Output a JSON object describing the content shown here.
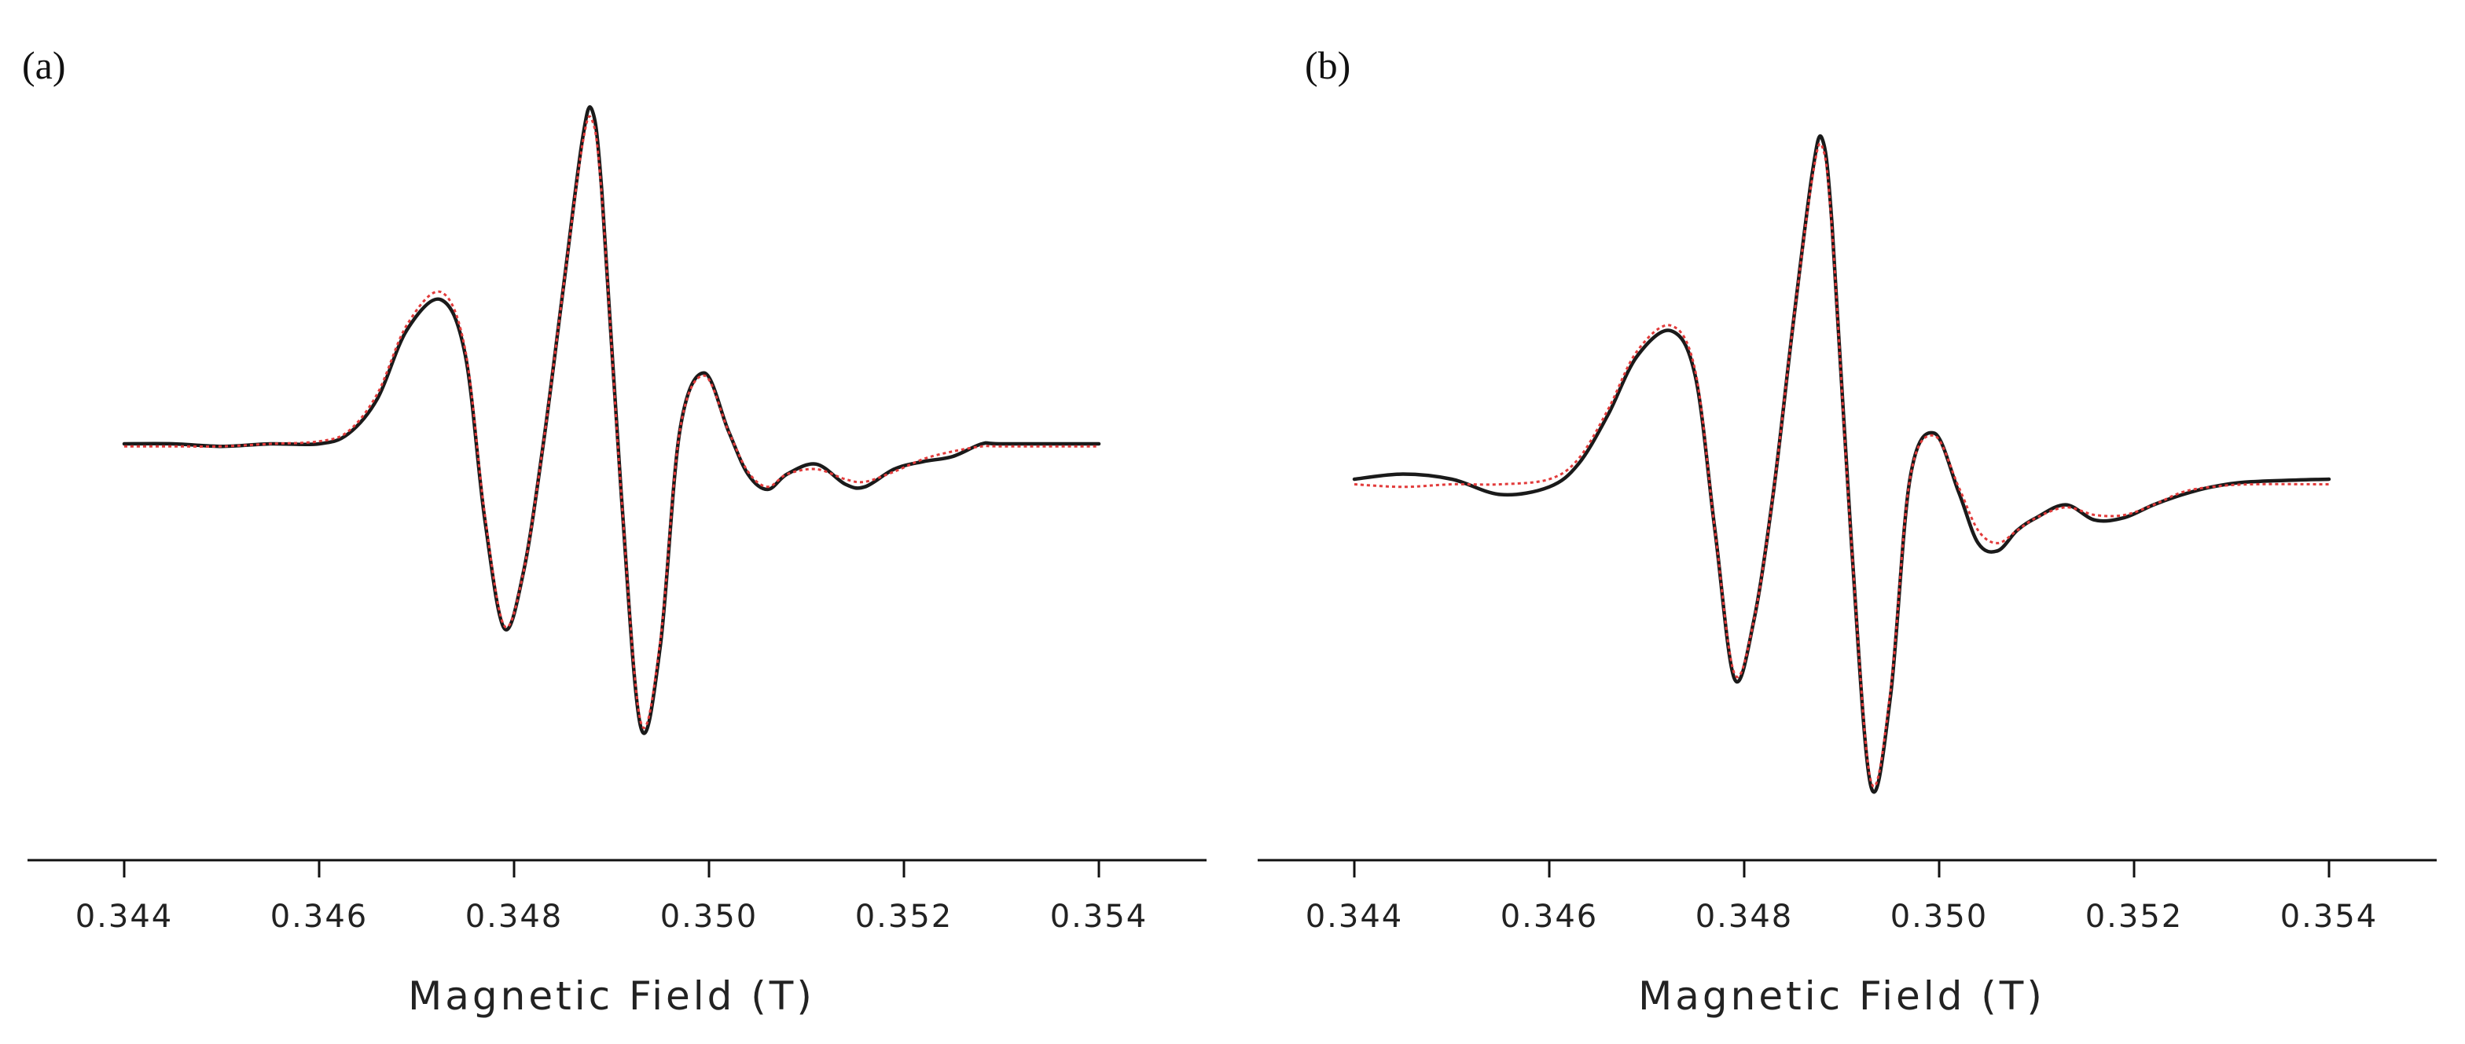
{
  "chart_data": [
    {
      "type": "line",
      "panel_label": "(a)",
      "xlabel": "Magnetic Field (T)",
      "ylabel": "",
      "xlim": [
        0.344,
        0.354
      ],
      "ylim": [
        -1.2,
        1.4
      ],
      "x_ticks": [
        "0.344",
        "0.346",
        "0.348",
        "0.350",
        "0.352",
        "0.354"
      ],
      "x_tick_values": [
        0.344,
        0.346,
        0.348,
        0.35,
        0.352,
        0.354
      ],
      "grid": false,
      "legend": "none",
      "series": [
        {
          "style": "solid",
          "color": "#1a1a1a",
          "x": [
            0.344,
            0.3445,
            0.345,
            0.3455,
            0.346,
            0.3463,
            0.3466,
            0.3469,
            0.34725,
            0.3475,
            0.3477,
            0.3479,
            0.3481,
            0.3483,
            0.3485,
            0.3487,
            0.3488,
            0.3489,
            0.3491,
            0.3493,
            0.3495,
            0.3497,
            0.34995,
            0.3502,
            0.3504,
            0.3506,
            0.3508,
            0.3511,
            0.3514,
            0.3516,
            0.3519,
            0.3522,
            0.3525,
            0.3528,
            0.353,
            0.354
          ],
          "y": [
            0.0,
            0.0,
            -0.01,
            0.0,
            0.0,
            0.04,
            0.18,
            0.45,
            0.57,
            0.35,
            -0.3,
            -0.73,
            -0.5,
            0.0,
            0.6,
            1.2,
            1.32,
            1.0,
            -0.2,
            -1.12,
            -0.8,
            0.05,
            0.28,
            0.05,
            -0.12,
            -0.18,
            -0.12,
            -0.08,
            -0.16,
            -0.17,
            -0.1,
            -0.07,
            -0.05,
            0.0,
            0.0,
            0.0
          ]
        },
        {
          "style": "dotted",
          "color": "#e23b3b",
          "x": [
            0.344,
            0.3445,
            0.345,
            0.3455,
            0.346,
            0.3463,
            0.3466,
            0.3469,
            0.34725,
            0.3475,
            0.3477,
            0.3479,
            0.3481,
            0.3483,
            0.3485,
            0.3487,
            0.3488,
            0.3489,
            0.3491,
            0.3493,
            0.3495,
            0.3497,
            0.34995,
            0.3502,
            0.3504,
            0.3506,
            0.3508,
            0.3511,
            0.3514,
            0.3516,
            0.3519,
            0.3522,
            0.3525,
            0.3528,
            0.353,
            0.354
          ],
          "y": [
            -0.01,
            -0.01,
            -0.01,
            0.0,
            0.01,
            0.05,
            0.2,
            0.47,
            0.6,
            0.37,
            -0.28,
            -0.72,
            -0.5,
            0.0,
            0.6,
            1.18,
            1.28,
            0.98,
            -0.2,
            -1.1,
            -0.78,
            0.05,
            0.27,
            0.05,
            -0.11,
            -0.17,
            -0.12,
            -0.1,
            -0.14,
            -0.15,
            -0.11,
            -0.06,
            -0.03,
            -0.01,
            -0.01,
            -0.01
          ]
        }
      ]
    },
    {
      "type": "line",
      "panel_label": "(b)",
      "xlabel": "Magnetic Field (T)",
      "ylabel": "",
      "xlim": [
        0.344,
        0.354
      ],
      "ylim": [
        -1.2,
        1.4
      ],
      "x_ticks": [
        "0.344",
        "0.346",
        "0.348",
        "0.350",
        "0.352",
        "0.354"
      ],
      "x_tick_values": [
        0.344,
        0.346,
        0.348,
        0.35,
        0.352,
        0.354
      ],
      "grid": false,
      "legend": "none",
      "series": [
        {
          "style": "solid",
          "color": "#1a1a1a",
          "x": [
            0.344,
            0.3445,
            0.345,
            0.3455,
            0.346,
            0.3463,
            0.3466,
            0.3469,
            0.34725,
            0.3475,
            0.3477,
            0.3479,
            0.3481,
            0.3483,
            0.3485,
            0.3487,
            0.3488,
            0.3489,
            0.3491,
            0.3493,
            0.3495,
            0.3497,
            0.34995,
            0.3502,
            0.3504,
            0.3506,
            0.3508,
            0.351,
            0.3513,
            0.3516,
            0.3519,
            0.3522,
            0.3525,
            0.3528,
            0.3532,
            0.354
          ],
          "y": [
            0.0,
            0.02,
            0.0,
            -0.06,
            -0.03,
            0.06,
            0.25,
            0.48,
            0.58,
            0.4,
            -0.2,
            -0.78,
            -0.55,
            -0.05,
            0.6,
            1.2,
            1.33,
            1.0,
            -0.25,
            -1.2,
            -0.85,
            0.0,
            0.18,
            -0.05,
            -0.25,
            -0.28,
            -0.2,
            -0.15,
            -0.1,
            -0.16,
            -0.15,
            -0.1,
            -0.06,
            -0.03,
            -0.01,
            0.0
          ]
        },
        {
          "style": "dotted",
          "color": "#e23b3b",
          "x": [
            0.344,
            0.3445,
            0.345,
            0.3455,
            0.346,
            0.3463,
            0.3466,
            0.3469,
            0.34725,
            0.3475,
            0.3477,
            0.3479,
            0.3481,
            0.3483,
            0.3485,
            0.3487,
            0.3488,
            0.3489,
            0.3491,
            0.3493,
            0.3495,
            0.3497,
            0.34995,
            0.3502,
            0.3504,
            0.3506,
            0.3508,
            0.351,
            0.3513,
            0.3516,
            0.3519,
            0.3522,
            0.3525,
            0.3528,
            0.3532,
            0.354
          ],
          "y": [
            -0.02,
            -0.03,
            -0.02,
            -0.02,
            0.0,
            0.08,
            0.27,
            0.5,
            0.6,
            0.42,
            -0.2,
            -0.76,
            -0.55,
            -0.05,
            0.6,
            1.18,
            1.3,
            0.98,
            -0.25,
            -1.18,
            -0.83,
            0.0,
            0.17,
            -0.03,
            -0.2,
            -0.25,
            -0.2,
            -0.15,
            -0.11,
            -0.14,
            -0.14,
            -0.1,
            -0.05,
            -0.03,
            -0.02,
            -0.02
          ]
        }
      ]
    }
  ]
}
